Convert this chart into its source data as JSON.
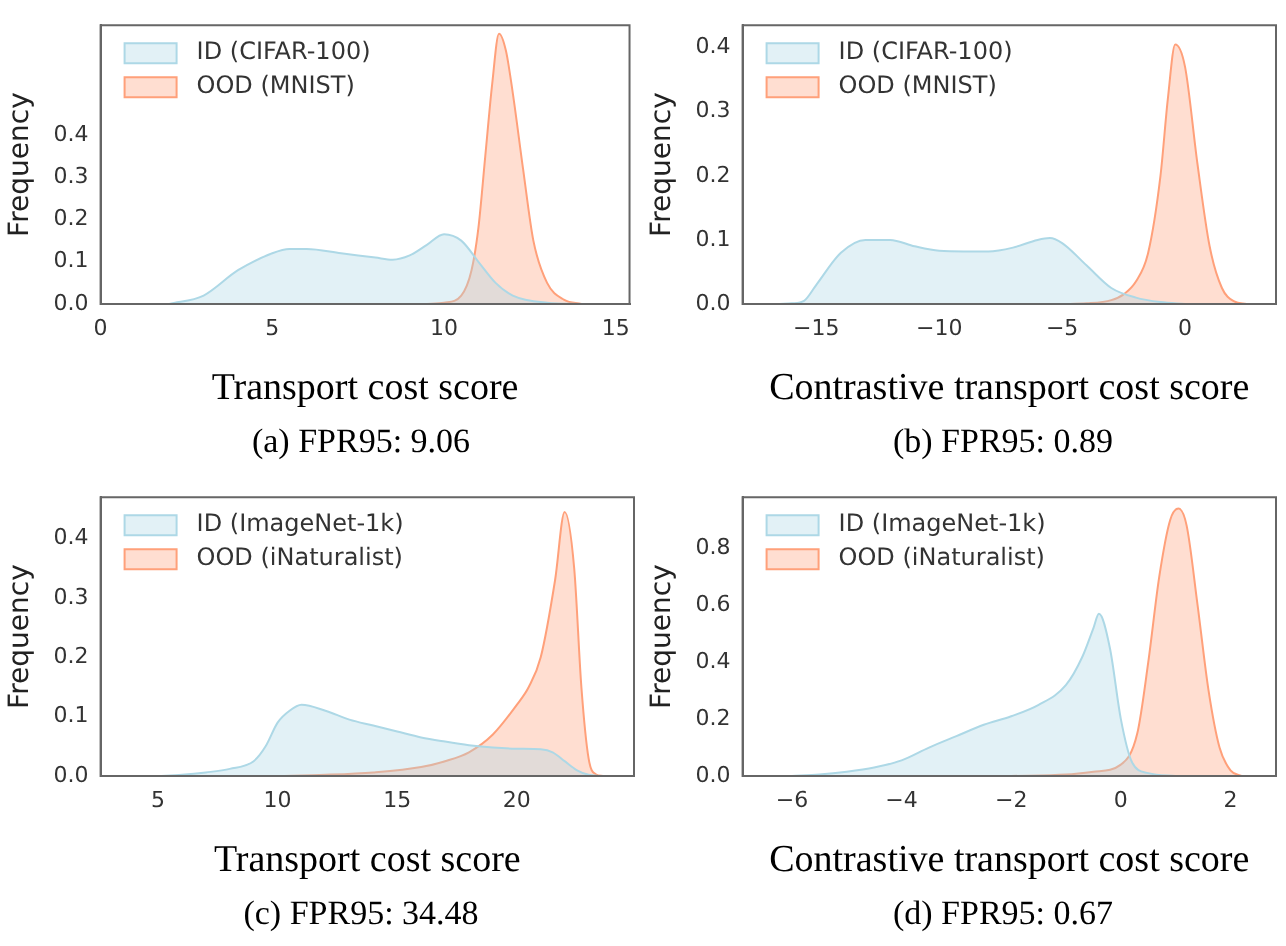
{
  "chart_data": [
    {
      "type": "area",
      "xlabel": "Transport cost score",
      "ylabel": "Frequency",
      "annotations": [
        "(a) FPR95: 9.06"
      ],
      "legend": "top left",
      "xlim": [
        0,
        15.4
      ],
      "ylim": [
        0,
        0.66
      ],
      "xticks": [
        0,
        5,
        10,
        15
      ],
      "yticks": [
        {
          "value": 0,
          "label": "0.0"
        },
        {
          "value": 0.1,
          "label": "0.1"
        },
        {
          "value": 0.2,
          "label": "0.2"
        },
        {
          "value": 0.3,
          "label": "0.3"
        },
        {
          "value": 0.4,
          "label": "0.4"
        }
      ],
      "series": [
        {
          "name": "ID (CIFAR-100)",
          "color": "#add8e6",
          "x": [
            2,
            3,
            4,
            5,
            5.5,
            6,
            7,
            8,
            8.5,
            9,
            9.5,
            10,
            10.5,
            11,
            11.5,
            12,
            13,
            14
          ],
          "values": [
            0,
            0.02,
            0.08,
            0.12,
            0.13,
            0.13,
            0.12,
            0.11,
            0.105,
            0.115,
            0.14,
            0.165,
            0.15,
            0.1,
            0.05,
            0.02,
            0.003,
            0
          ]
        },
        {
          "name": "OOD (MNIST)",
          "color": "#ffa07a",
          "x": [
            9.5,
            10,
            10.5,
            10.8,
            11,
            11.2,
            11.4,
            11.6,
            11.8,
            12,
            12.3,
            12.6,
            13,
            13.5,
            14
          ],
          "values": [
            0,
            0.003,
            0.02,
            0.08,
            0.18,
            0.35,
            0.52,
            0.64,
            0.6,
            0.5,
            0.32,
            0.15,
            0.05,
            0.01,
            0
          ]
        }
      ]
    },
    {
      "type": "area",
      "xlabel": "Contrastive transport cost score",
      "ylabel": "Frequency",
      "annotations": [
        "(b) FPR95: 0.89"
      ],
      "legend": "top left",
      "xlim": [
        -18,
        3.7
      ],
      "ylim": [
        0,
        0.435
      ],
      "xticks": [
        {
          "value": -15,
          "label": "−15"
        },
        {
          "value": -10,
          "label": "−10"
        },
        {
          "value": -5,
          "label": "−5"
        },
        0
      ],
      "yticks": [
        {
          "value": 0,
          "label": "0.0"
        },
        {
          "value": 0.1,
          "label": "0.1"
        },
        {
          "value": 0.2,
          "label": "0.2"
        },
        {
          "value": 0.3,
          "label": "0.3"
        },
        {
          "value": 0.4,
          "label": "0.4"
        }
      ],
      "series": [
        {
          "name": "ID (CIFAR-100)",
          "color": "#add8e6",
          "x": [
            -16.5,
            -16,
            -15.5,
            -15,
            -14,
            -13,
            -12,
            -11,
            -10,
            -9,
            -8,
            -7,
            -6,
            -5.5,
            -5,
            -4,
            -3,
            -2,
            -1,
            0
          ],
          "values": [
            0,
            0.001,
            0.005,
            0.03,
            0.08,
            0.1,
            0.1,
            0.09,
            0.083,
            0.082,
            0.082,
            0.088,
            0.1,
            0.103,
            0.095,
            0.06,
            0.025,
            0.01,
            0.003,
            0
          ]
        },
        {
          "name": "OOD (MNIST)",
          "color": "#ffa07a",
          "x": [
            -5,
            -4,
            -3,
            -2.5,
            -2,
            -1.5,
            -1,
            -0.7,
            -0.4,
            0,
            0.5,
            1,
            1.5,
            2,
            2.5
          ],
          "values": [
            0,
            0.001,
            0.006,
            0.015,
            0.035,
            0.08,
            0.2,
            0.32,
            0.405,
            0.37,
            0.22,
            0.09,
            0.025,
            0.004,
            0
          ]
        }
      ]
    },
    {
      "type": "area",
      "xlabel": "Transport cost score",
      "ylabel": "Frequency",
      "annotations": [
        "(c) FPR95: 34.48"
      ],
      "legend": "top left",
      "xlim": [
        2.6,
        24.9
      ],
      "ylim": [
        0,
        0.47
      ],
      "xticks": [
        5,
        10,
        15,
        20
      ],
      "yticks": [
        {
          "value": 0,
          "label": "0.0"
        },
        {
          "value": 0.1,
          "label": "0.1"
        },
        {
          "value": 0.2,
          "label": "0.2"
        },
        {
          "value": 0.3,
          "label": "0.3"
        },
        {
          "value": 0.4,
          "label": "0.4"
        }
      ],
      "series": [
        {
          "name": "ID (ImageNet-1k)",
          "color": "#add8e6",
          "x": [
            5,
            6,
            7,
            8,
            9,
            9.5,
            10,
            10.5,
            11,
            12,
            13,
            14,
            15,
            16,
            17,
            18,
            19,
            20,
            21,
            21.5,
            22,
            22.5,
            23,
            23.5
          ],
          "values": [
            0,
            0.002,
            0.006,
            0.012,
            0.025,
            0.05,
            0.09,
            0.11,
            0.12,
            0.11,
            0.095,
            0.085,
            0.075,
            0.065,
            0.058,
            0.052,
            0.048,
            0.046,
            0.045,
            0.04,
            0.025,
            0.01,
            0.002,
            0
          ]
        },
        {
          "name": "OOD (iNaturalist)",
          "color": "#ffa07a",
          "x": [
            10,
            12,
            14,
            16,
            17,
            18,
            19,
            20,
            20.5,
            21,
            21.6,
            22,
            22.4,
            22.7,
            23,
            23.3,
            23.6
          ],
          "values": [
            0,
            0.002,
            0.006,
            0.015,
            0.025,
            0.04,
            0.07,
            0.12,
            0.15,
            0.2,
            0.33,
            0.445,
            0.35,
            0.15,
            0.03,
            0.003,
            0
          ]
        }
      ]
    },
    {
      "type": "area",
      "xlabel": "Contrastive transport cost score",
      "ylabel": "Frequency",
      "annotations": [
        "(d) FPR95: 0.67"
      ],
      "legend": "top left",
      "xlim": [
        -6.9,
        2.83
      ],
      "ylim": [
        0,
        0.98
      ],
      "xticks": [
        {
          "value": -6,
          "label": "−6"
        },
        {
          "value": -4,
          "label": "−4"
        },
        {
          "value": -2,
          "label": "−2"
        },
        0,
        2
      ],
      "yticks": [
        {
          "value": 0,
          "label": "0.0"
        },
        {
          "value": 0.2,
          "label": "0.2"
        },
        {
          "value": 0.4,
          "label": "0.4"
        },
        {
          "value": 0.6,
          "label": "0.6"
        },
        {
          "value": 0.8,
          "label": "0.8"
        }
      ],
      "series": [
        {
          "name": "ID (ImageNet-1k)",
          "color": "#add8e6",
          "x": [
            -6,
            -5.5,
            -5,
            -4.5,
            -4,
            -3.5,
            -3,
            -2.5,
            -2,
            -1.5,
            -1,
            -0.7,
            -0.5,
            -0.4,
            -0.2,
            0,
            0.2,
            0.5,
            1
          ],
          "values": [
            0,
            0.005,
            0.015,
            0.03,
            0.055,
            0.1,
            0.14,
            0.18,
            0.21,
            0.25,
            0.32,
            0.42,
            0.52,
            0.57,
            0.45,
            0.2,
            0.05,
            0.01,
            0
          ]
        },
        {
          "name": "OOD (iNaturalist)",
          "color": "#ffa07a",
          "x": [
            -2,
            -1,
            -0.5,
            0,
            0.3,
            0.5,
            0.7,
            0.9,
            1.05,
            1.2,
            1.4,
            1.6,
            1.8,
            2,
            2.2
          ],
          "values": [
            0,
            0.005,
            0.015,
            0.04,
            0.15,
            0.4,
            0.7,
            0.9,
            0.94,
            0.88,
            0.6,
            0.3,
            0.1,
            0.02,
            0
          ]
        }
      ]
    }
  ]
}
